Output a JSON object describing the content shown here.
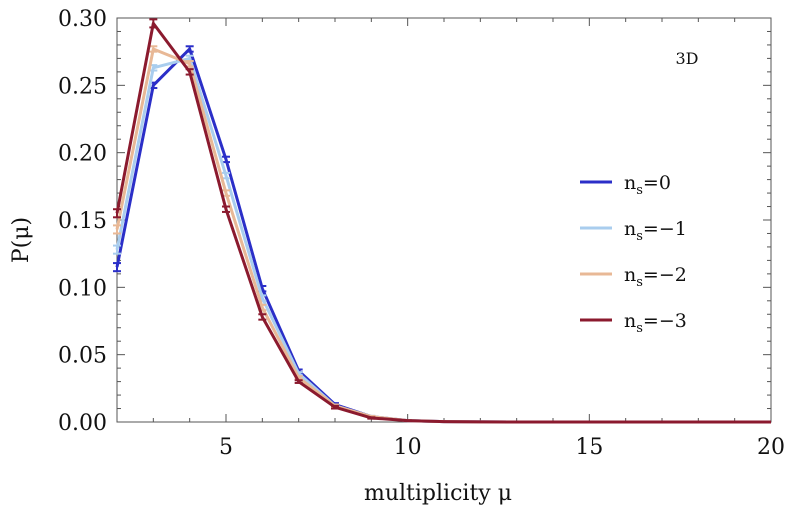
{
  "chart_data": {
    "type": "line",
    "xlabel": "multiplicity μ",
    "ylabel": "P(μ)",
    "xlim": [
      2,
      20
    ],
    "ylim": [
      0,
      0.3
    ],
    "xticks": [
      5,
      10,
      15,
      20
    ],
    "yticks": [
      "0.00",
      "0.05",
      "0.10",
      "0.15",
      "0.20",
      "0.25",
      "0.30"
    ],
    "annotation": "3D",
    "legend_position": "right",
    "grid": false,
    "x": [
      2,
      3,
      4,
      5,
      6,
      7,
      8,
      9,
      10,
      11,
      12,
      13,
      14,
      15,
      16,
      17,
      18,
      19,
      20
    ],
    "series": [
      {
        "name": "n_s=0",
        "legend_main": "n",
        "legend_sub": "s",
        "legend_rest": "=0",
        "color": "#2b2fc8",
        "values": [
          0.115,
          0.25,
          0.277,
          0.195,
          0.099,
          0.038,
          0.013,
          0.004,
          0.001,
          0.0003,
          0.0001,
          0,
          0,
          0,
          0,
          0,
          0,
          0,
          0
        ],
        "errors": [
          0.003,
          0.002,
          0.002,
          0.002,
          0.002,
          0.001,
          0.001,
          0.0005,
          0.0003,
          0,
          0,
          0,
          0,
          0,
          0,
          0,
          0,
          0,
          0
        ]
      },
      {
        "name": "n_s=-1",
        "legend_main": "n",
        "legend_sub": "s",
        "legend_rest": "=−1",
        "color": "#a9cdee",
        "values": [
          0.128,
          0.263,
          0.27,
          0.183,
          0.092,
          0.036,
          0.012,
          0.004,
          0.001,
          0.0003,
          0.0001,
          0,
          0,
          0,
          0,
          0,
          0,
          0,
          0
        ],
        "errors": [
          0.003,
          0.002,
          0.002,
          0.002,
          0.002,
          0.001,
          0.001,
          0.0005,
          0.0003,
          0,
          0,
          0,
          0,
          0,
          0,
          0,
          0,
          0,
          0
        ]
      },
      {
        "name": "n_s=-2",
        "legend_main": "n",
        "legend_sub": "s",
        "legend_rest": "=−2",
        "color": "#e8b896",
        "values": [
          0.143,
          0.277,
          0.266,
          0.17,
          0.085,
          0.033,
          0.012,
          0.004,
          0.001,
          0.0003,
          0.0001,
          0,
          0,
          0,
          0,
          0,
          0,
          0,
          0
        ],
        "errors": [
          0.003,
          0.002,
          0.002,
          0.002,
          0.002,
          0.001,
          0.001,
          0.0005,
          0.0003,
          0,
          0,
          0,
          0,
          0,
          0,
          0,
          0,
          0,
          0
        ]
      },
      {
        "name": "n_s=-3",
        "legend_main": "n",
        "legend_sub": "s",
        "legend_rest": "=−3",
        "color": "#8b1a2e",
        "values": [
          0.155,
          0.296,
          0.26,
          0.158,
          0.078,
          0.03,
          0.011,
          0.003,
          0.001,
          0.0003,
          0.0001,
          0,
          0,
          0,
          0,
          0,
          0,
          0,
          0
        ],
        "errors": [
          0.003,
          0.003,
          0.002,
          0.002,
          0.002,
          0.001,
          0.001,
          0.0005,
          0.0003,
          0,
          0,
          0,
          0,
          0,
          0,
          0,
          0,
          0,
          0
        ]
      }
    ]
  }
}
